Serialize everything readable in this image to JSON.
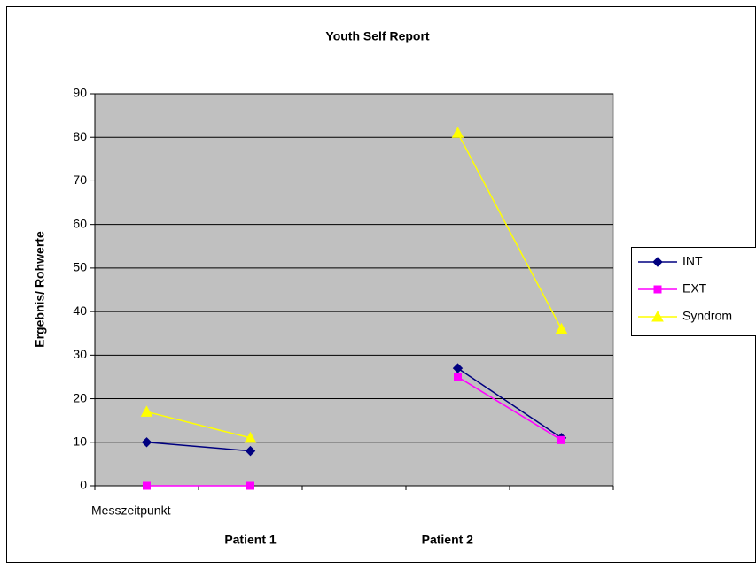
{
  "chart_data": {
    "type": "line",
    "title": "Youth Self Report",
    "y_label": "Ergebnis/ Rohwerte",
    "x_label": "Messzeitpunkt",
    "group_labels": [
      "Patient 1",
      "Patient 2"
    ],
    "categories": [
      null,
      null,
      null,
      null,
      null
    ],
    "series": [
      {
        "name": "INT",
        "color": "#000080",
        "marker": "diamond",
        "values": [
          10,
          8,
          null,
          27,
          11
        ]
      },
      {
        "name": "EXT",
        "color": "#ff00ff",
        "marker": "square",
        "values": [
          0,
          0,
          null,
          25,
          10.5
        ]
      },
      {
        "name": "Syndrom",
        "color": "#ffff00",
        "marker": "triangle",
        "values": [
          17,
          11,
          null,
          81,
          36
        ]
      }
    ],
    "ylim": [
      0,
      90
    ],
    "yticks": [
      0,
      10,
      20,
      30,
      40,
      50,
      60,
      70,
      80,
      90
    ],
    "grid": true,
    "plot_background": "#c0c0c0",
    "legend": "right"
  }
}
